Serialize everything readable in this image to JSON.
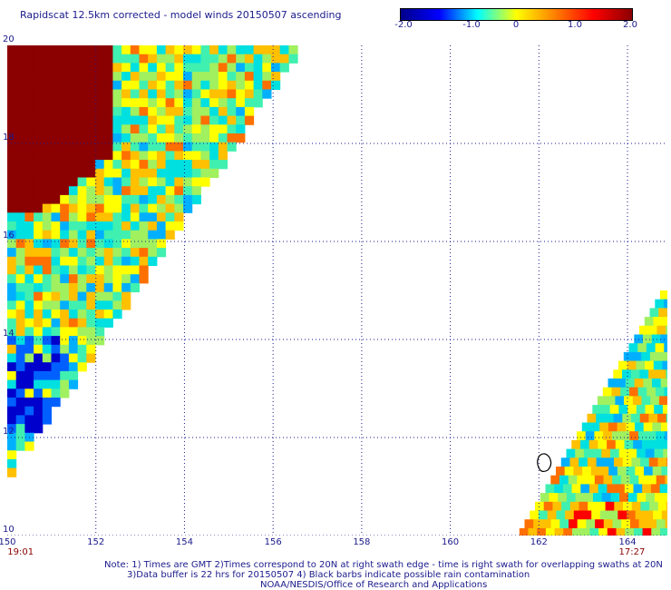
{
  "title": "Rapidscat 12.5km corrected - model winds 20150507 ascending",
  "colorbar": {
    "min": -2.0,
    "max": 2.0,
    "ticks": [
      "-2.0",
      "-1.0",
      "0",
      "1.0",
      "2.0"
    ],
    "colors": [
      "#00008b",
      "#0000ff",
      "#00ffff",
      "#ffff00",
      "#ff8000",
      "#ff0000",
      "#8b0000"
    ]
  },
  "map": {
    "lat_range": [
      10,
      20
    ],
    "lon_range": [
      150,
      164.9
    ],
    "lat_labels": [
      "20",
      "18",
      "16",
      "14",
      "12",
      "10"
    ],
    "lon_labels": [
      "150",
      "152",
      "154",
      "156",
      "158",
      "160",
      "162",
      "164"
    ],
    "times": [
      {
        "lon": 150.3,
        "label": "19:01"
      },
      {
        "lon": 164.1,
        "label": "17:27"
      }
    ],
    "grid_dotted": true
  },
  "notes": [
    "Note: 1) Times are GMT 2)Times correspond to 20N at right swath edge - time is right swath for overlapping swaths at 20N",
    "3)Data buffer is 22 hrs for 20150507 4) Black barbs indicate possible rain contamination",
    "NOAA/NESDIS/Office of Research and Applications"
  ]
}
